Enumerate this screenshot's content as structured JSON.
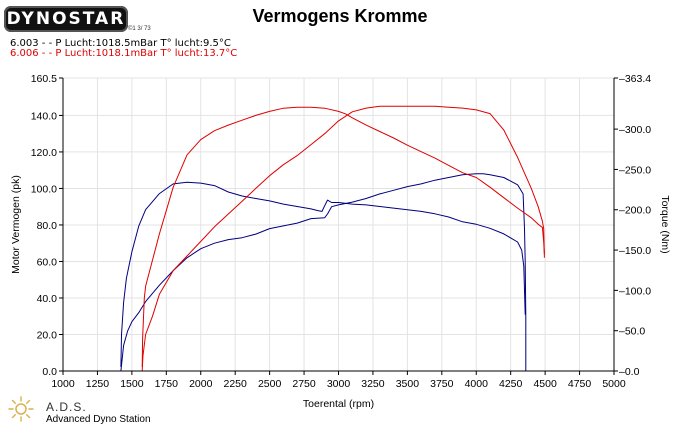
{
  "header": {
    "logo_text": "DYNOSTAR",
    "logo_registered": "©1 3/ 73",
    "title": "Vermogens Kromme",
    "runs": [
      {
        "label": "6.003 -  - P Lucht:1018.5mBar T° lucht:9.5°C",
        "color": "#000000"
      },
      {
        "label": "6.006 -  - P Lucht:1018.1mBar T° lucht:13.7°C",
        "color": "#e00000"
      }
    ]
  },
  "footer": {
    "abbr": "A.D.S.",
    "name": "Advanced Dyno Station"
  },
  "chart_data": {
    "type": "line",
    "title": "Vermogens Kromme",
    "xlabel": "Toerental (rpm)",
    "ylabel": "Motor Vermogen (pk)",
    "y2label": "Torque (Nm)",
    "xlim": [
      1000,
      5000
    ],
    "ylim": [
      0,
      160.5
    ],
    "y2lim": [
      0,
      363.4
    ],
    "x_ticks": [
      "1000",
      "1250",
      "1500",
      "1750",
      "2000",
      "2250",
      "2500",
      "2750",
      "3000",
      "3250",
      "3500",
      "3750",
      "4000",
      "4250",
      "4500",
      "4750",
      "5000"
    ],
    "y_ticks": [
      "0.0",
      "20.0",
      "40.0",
      "60.0",
      "80.0",
      "100.0",
      "120.0",
      "140.0",
      "160.5"
    ],
    "y_tick_values": [
      0,
      20,
      40,
      60,
      80,
      100,
      120,
      140,
      160.5
    ],
    "y2_ticks": [
      "0.0",
      "50.0",
      "100.0",
      "150.0",
      "200.0",
      "250.0",
      "300.0",
      "363.4"
    ],
    "y2_tick_values": [
      0,
      50,
      100,
      150,
      200,
      250,
      300,
      363.4
    ],
    "grid": true,
    "series": [
      {
        "name": "6.003 power",
        "axis": "left",
        "color": "#000080",
        "x": [
          1420,
          1440,
          1470,
          1500,
          1550,
          1600,
          1700,
          1800,
          1900,
          2000,
          2100,
          2200,
          2300,
          2400,
          2500,
          2600,
          2700,
          2800,
          2900,
          2920,
          2950,
          3000,
          3100,
          3200,
          3300,
          3400,
          3500,
          3600,
          3700,
          3800,
          3900,
          4000,
          4050,
          4100,
          4200,
          4300,
          4340,
          4350,
          4355,
          4360,
          4360
        ],
        "y": [
          0,
          14,
          22,
          27,
          32,
          38,
          47,
          55,
          62,
          67,
          70,
          72,
          73,
          75,
          78,
          79.5,
          81,
          83.5,
          84,
          86,
          90,
          91,
          92.5,
          94.5,
          97,
          99,
          101,
          102.5,
          104.5,
          106,
          107.5,
          108,
          108,
          107.5,
          106,
          102,
          97,
          78,
          60,
          30,
          0
        ]
      },
      {
        "name": "6.003 torque",
        "axis": "right",
        "color": "#000080",
        "x": [
          1420,
          1425,
          1440,
          1460,
          1500,
          1550,
          1600,
          1700,
          1800,
          1900,
          2000,
          2100,
          2200,
          2300,
          2400,
          2500,
          2600,
          2700,
          2800,
          2850,
          2880,
          2900,
          2920,
          2950,
          3000,
          3100,
          3200,
          3300,
          3400,
          3500,
          3600,
          3700,
          3800,
          3900,
          4000,
          4100,
          4200,
          4300,
          4330,
          4345,
          4355
        ],
        "y": [
          5,
          45,
          85,
          115,
          148,
          180,
          200,
          220,
          232,
          234,
          233,
          230,
          222,
          217,
          214,
          211,
          207,
          204,
          201,
          199,
          198,
          205,
          212,
          209,
          209,
          207,
          206,
          204,
          202,
          200,
          198,
          195,
          191,
          185,
          182,
          177,
          170,
          160,
          150,
          130,
          70
        ]
      },
      {
        "name": "6.006 power",
        "axis": "left",
        "color": "#e00000",
        "x": [
          1575,
          1580,
          1600,
          1650,
          1700,
          1800,
          1900,
          2000,
          2100,
          2200,
          2300,
          2400,
          2500,
          2600,
          2700,
          2800,
          2900,
          3000,
          3100,
          3200,
          3300,
          3400,
          3500,
          3600,
          3700,
          3800,
          3900,
          4000,
          4100,
          4200,
          4300,
          4400,
          4450,
          4480,
          4490,
          4495
        ],
        "y": [
          0,
          8,
          20,
          30,
          42,
          55,
          63,
          71,
          79,
          86,
          93,
          100,
          107,
          113,
          118,
          124,
          130,
          137,
          142,
          144,
          145,
          145,
          145,
          145,
          145,
          144.5,
          144,
          143,
          141,
          132,
          117,
          100,
          90,
          82,
          78,
          62
        ]
      },
      {
        "name": "6.006 torque",
        "axis": "right",
        "color": "#e00000",
        "x": [
          1575,
          1578,
          1590,
          1600,
          1700,
          1800,
          1900,
          2000,
          2100,
          2200,
          2300,
          2400,
          2500,
          2600,
          2700,
          2800,
          2900,
          3000,
          3050,
          3100,
          3200,
          3300,
          3400,
          3500,
          3600,
          3700,
          3800,
          3900,
          4000,
          4100,
          4200,
          4300,
          4400,
          4450,
          4480,
          4490,
          4495
        ],
        "y": [
          5,
          40,
          90,
          105,
          170,
          228,
          268,
          287,
          298,
          305,
          311,
          317,
          322,
          326,
          327,
          327,
          326,
          322,
          319,
          314,
          305,
          297,
          289,
          280,
          272,
          264,
          255,
          246,
          240,
          228,
          215,
          202,
          190,
          182,
          178,
          160,
          145
        ]
      }
    ]
  }
}
